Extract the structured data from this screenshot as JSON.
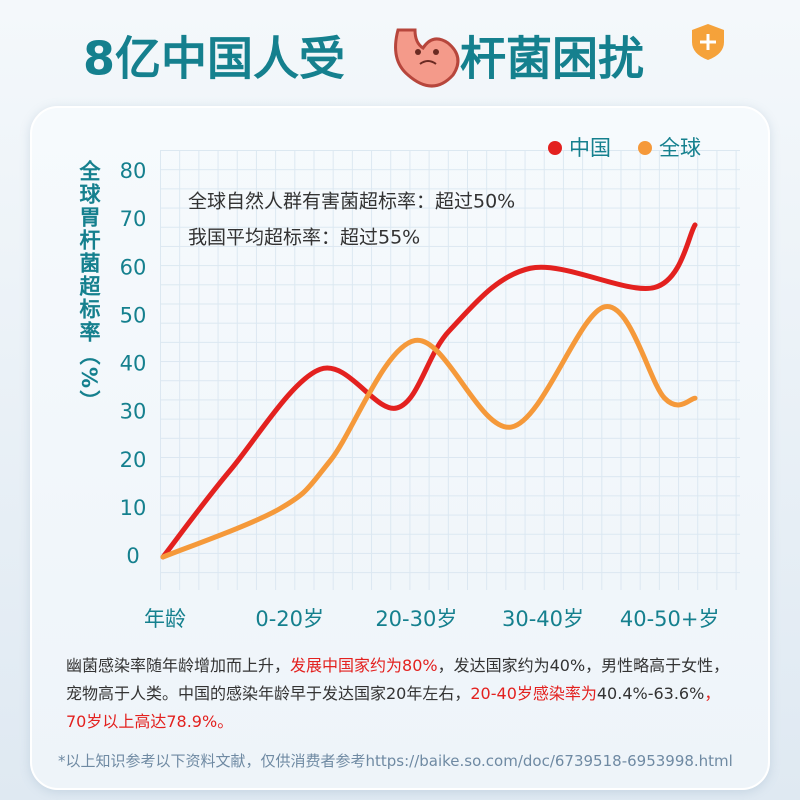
{
  "chart_data": {
    "type": "line",
    "title": [
      "8亿中国人受",
      "杆菌困扰"
    ],
    "y_label": "全球胃杆菌超标率（%）",
    "annotations": [
      "全球自然人群有害菌超标率：超过50%",
      "我国平均超标率：超过55%"
    ],
    "xlim": [
      0,
      4.2
    ],
    "xticks": [
      {
        "value": 0,
        "label": "年龄"
      },
      {
        "value": 1,
        "label": "0-20岁"
      },
      {
        "value": 2,
        "label": "20-30岁"
      },
      {
        "value": 3,
        "label": "30-40岁"
      },
      {
        "value": 4,
        "label": "40-50+岁"
      }
    ],
    "ylim": [
      0,
      80
    ],
    "yticks": [
      0,
      10,
      20,
      30,
      40,
      50,
      60,
      70,
      80
    ],
    "legend": "top-right",
    "series": [
      {
        "name": "中国",
        "color": "#e3211f",
        "x": [
          0,
          0.53,
          1.24,
          1.85,
          2.26,
          2.9,
          3.88,
          4.2
        ],
        "values": [
          0,
          18,
          39,
          31,
          47,
          60,
          56,
          69
        ]
      },
      {
        "name": "全球",
        "color": "#f5993a",
        "x": [
          0,
          0.92,
          1.32,
          1.99,
          2.75,
          3.49,
          3.96,
          4.2
        ],
        "values": [
          0,
          10,
          20,
          45,
          27,
          52,
          33,
          33
        ]
      }
    ],
    "description": [
      "幽菌感染率随年龄增加而上升，",
      "发展中国家约为80%",
      "，发达国家约为40%，男性略高于女性，宠物高于人类。中国的感染年龄早于发达国家20年左右，",
      "20-40岁感染率为",
      "40.4%-63.6%",
      "，70岁以上高达78.9%。"
    ],
    "footnote": "*以上知识参考以下资料文献，仅供消费者参考https://baike.so.com/doc/6739518-6953998.html"
  }
}
